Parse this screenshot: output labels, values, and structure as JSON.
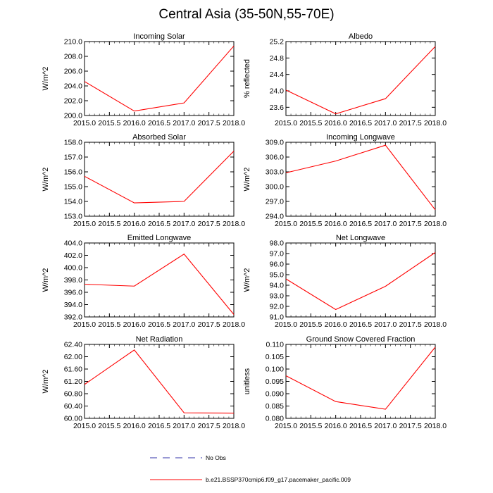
{
  "title": "Central Asia (35-50N,55-70E)",
  "colors": {
    "model_line": "#ff0000",
    "obs_line": "#3333aa",
    "axes": "#000000"
  },
  "legend": [
    {
      "label": "No Obs",
      "style": "dashed",
      "color": "#3333aa"
    },
    {
      "label": "b.e21.BSSP370cmip6.f09_g17.pacemaker_pacific.009",
      "style": "solid",
      "color": "#ff0000"
    }
  ],
  "chart_data": [
    {
      "type": "line",
      "title": "Incoming Solar",
      "ylabel": "W/m^2",
      "x": [
        2015.0,
        2016.0,
        2017.0,
        2018.0
      ],
      "xlim": [
        2015.0,
        2018.0
      ],
      "xticks": [
        "2015.0",
        "2015.5",
        "2016.0",
        "2016.5",
        "2017.0",
        "2017.5",
        "2018.0"
      ],
      "ylim": [
        200.0,
        210.0
      ],
      "yticks": [
        "200.0",
        "202.0",
        "204.0",
        "206.0",
        "208.0",
        "210.0"
      ],
      "series": [
        {
          "values": [
            204.6,
            200.6,
            201.7,
            209.4
          ]
        }
      ]
    },
    {
      "type": "line",
      "title": "Albedo",
      "ylabel": "% reflected",
      "x": [
        2015.0,
        2016.0,
        2017.0,
        2018.0
      ],
      "xlim": [
        2015.0,
        2018.0
      ],
      "xticks": [
        "2015.0",
        "2015.5",
        "2016.0",
        "2016.5",
        "2017.0",
        "2017.5",
        "2018.0"
      ],
      "ylim": [
        23.4,
        25.2
      ],
      "yticks": [
        "23.6",
        "24.0",
        "24.4",
        "24.8",
        "25.2"
      ],
      "series": [
        {
          "values": [
            24.02,
            23.44,
            23.81,
            25.08
          ]
        }
      ]
    },
    {
      "type": "line",
      "title": "Absorbed Solar",
      "ylabel": "W/m^2",
      "x": [
        2015.0,
        2016.0,
        2017.0,
        2018.0
      ],
      "xlim": [
        2015.0,
        2018.0
      ],
      "xticks": [
        "2015.0",
        "2015.5",
        "2016.0",
        "2016.5",
        "2017.0",
        "2017.5",
        "2018.0"
      ],
      "ylim": [
        153.0,
        158.0
      ],
      "yticks": [
        "153.0",
        "154.0",
        "155.0",
        "156.0",
        "157.0",
        "158.0"
      ],
      "series": [
        {
          "values": [
            155.7,
            153.9,
            154.0,
            157.4
          ]
        }
      ]
    },
    {
      "type": "line",
      "title": "Incoming Longwave",
      "ylabel": "W/m^2",
      "x": [
        2015.0,
        2016.0,
        2017.0,
        2018.0
      ],
      "xlim": [
        2015.0,
        2018.0
      ],
      "xticks": [
        "2015.0",
        "2015.5",
        "2016.0",
        "2016.5",
        "2017.0",
        "2017.5",
        "2018.0"
      ],
      "ylim": [
        294.0,
        309.0
      ],
      "yticks": [
        "294.0",
        "297.0",
        "300.0",
        "303.0",
        "306.0",
        "309.0"
      ],
      "series": [
        {
          "values": [
            302.8,
            305.2,
            308.4,
            295.3
          ]
        }
      ]
    },
    {
      "type": "line",
      "title": "Emitted Longwave",
      "ylabel": "W/m^2",
      "x": [
        2015.0,
        2016.0,
        2017.0,
        2018.0
      ],
      "xlim": [
        2015.0,
        2018.0
      ],
      "xticks": [
        "2015.0",
        "2015.5",
        "2016.0",
        "2016.5",
        "2017.0",
        "2017.5",
        "2018.0"
      ],
      "ylim": [
        392.0,
        404.0
      ],
      "yticks": [
        "392.0",
        "394.0",
        "396.0",
        "398.0",
        "400.0",
        "402.0",
        "404.0"
      ],
      "series": [
        {
          "values": [
            397.3,
            397.0,
            402.2,
            392.4
          ]
        }
      ]
    },
    {
      "type": "line",
      "title": "Net Longwave",
      "ylabel": "W/m^2",
      "x": [
        2015.0,
        2016.0,
        2017.0,
        2018.0
      ],
      "xlim": [
        2015.0,
        2018.0
      ],
      "xticks": [
        "2015.0",
        "2015.5",
        "2016.0",
        "2016.5",
        "2017.0",
        "2017.5",
        "2018.0"
      ],
      "ylim": [
        91.0,
        98.0
      ],
      "yticks": [
        "91.0",
        "92.0",
        "93.0",
        "94.0",
        "95.0",
        "96.0",
        "97.0",
        "98.0"
      ],
      "series": [
        {
          "values": [
            94.6,
            91.7,
            93.9,
            97.1
          ]
        }
      ]
    },
    {
      "type": "line",
      "title": "Net Radiation",
      "ylabel": "W/m^2",
      "x": [
        2015.0,
        2016.0,
        2017.0,
        2018.0
      ],
      "xlim": [
        2015.0,
        2018.0
      ],
      "xticks": [
        "2015.0",
        "2015.5",
        "2016.0",
        "2016.5",
        "2017.0",
        "2017.5",
        "2018.0"
      ],
      "ylim": [
        60.0,
        62.4
      ],
      "yticks": [
        "60.00",
        "60.40",
        "60.80",
        "61.20",
        "61.60",
        "62.00",
        "62.40"
      ],
      "series": [
        {
          "values": [
            61.1,
            62.22,
            60.18,
            60.17
          ]
        }
      ]
    },
    {
      "type": "line",
      "title": "Ground Snow Covered Fraction",
      "ylabel": "unitless",
      "x": [
        2015.0,
        2016.0,
        2017.0,
        2018.0
      ],
      "xlim": [
        2015.0,
        2018.0
      ],
      "xticks": [
        "2015.0",
        "2015.5",
        "2016.0",
        "2016.5",
        "2017.0",
        "2017.5",
        "2018.0"
      ],
      "ylim": [
        0.08,
        0.11
      ],
      "yticks": [
        "0.080",
        "0.085",
        "0.090",
        "0.095",
        "0.100",
        "0.105",
        "0.110"
      ],
      "series": [
        {
          "values": [
            0.0973,
            0.0868,
            0.0837,
            0.1089
          ]
        }
      ]
    }
  ]
}
